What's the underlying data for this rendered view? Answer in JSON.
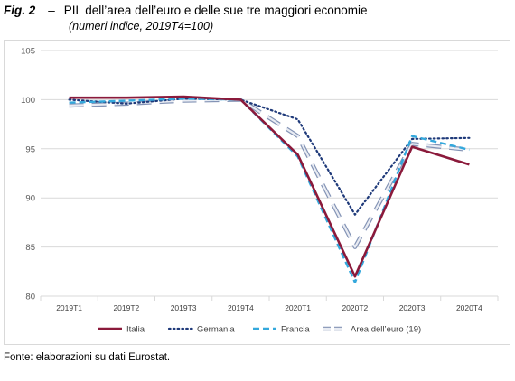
{
  "header": {
    "fig_label": "Fig. 2",
    "dash": "–",
    "title": "PIL dell’area dell’euro e delle sue tre maggiori economie",
    "subtitle": "(numeri indice, 2019T4=100)"
  },
  "source": "Fonte: elaborazioni su dati Eurostat.",
  "colors": {
    "italia": "#8b1a3b",
    "germania": "#1f3a7a",
    "francia": "#34a8dc",
    "area_outline": "#8393b5",
    "area_fill": "#e9ecf3",
    "grid": "#d9d9d9",
    "axis_text": "#595959"
  },
  "chart_data": {
    "type": "line",
    "title": "",
    "xlabel": "",
    "ylabel": "",
    "categories": [
      "2019T1",
      "2019T2",
      "2019T3",
      "2019T4",
      "2020T1",
      "2020T2",
      "2020T3",
      "2020T4"
    ],
    "ylim": [
      80,
      105
    ],
    "yticks": [
      80,
      85,
      90,
      95,
      100,
      105
    ],
    "grid": "horizontal",
    "legend_position": "bottom",
    "series": [
      {
        "name": "Italia",
        "style": "solid",
        "values": [
          100.2,
          100.2,
          100.3,
          100.0,
          94.4,
          82.0,
          95.2,
          93.4
        ]
      },
      {
        "name": "Germania",
        "style": "dotted",
        "values": [
          100.0,
          99.6,
          100.1,
          100.0,
          98.0,
          88.3,
          96.0,
          96.1
        ]
      },
      {
        "name": "Francia",
        "style": "dashed",
        "values": [
          99.7,
          99.9,
          100.1,
          100.0,
          94.2,
          81.4,
          96.3,
          94.9
        ]
      },
      {
        "name": "Area dell’euro (19)",
        "style": "double-dashed",
        "values": [
          99.4,
          99.6,
          99.9,
          100.0,
          96.3,
          85.0,
          95.5,
          94.9
        ]
      }
    ]
  }
}
